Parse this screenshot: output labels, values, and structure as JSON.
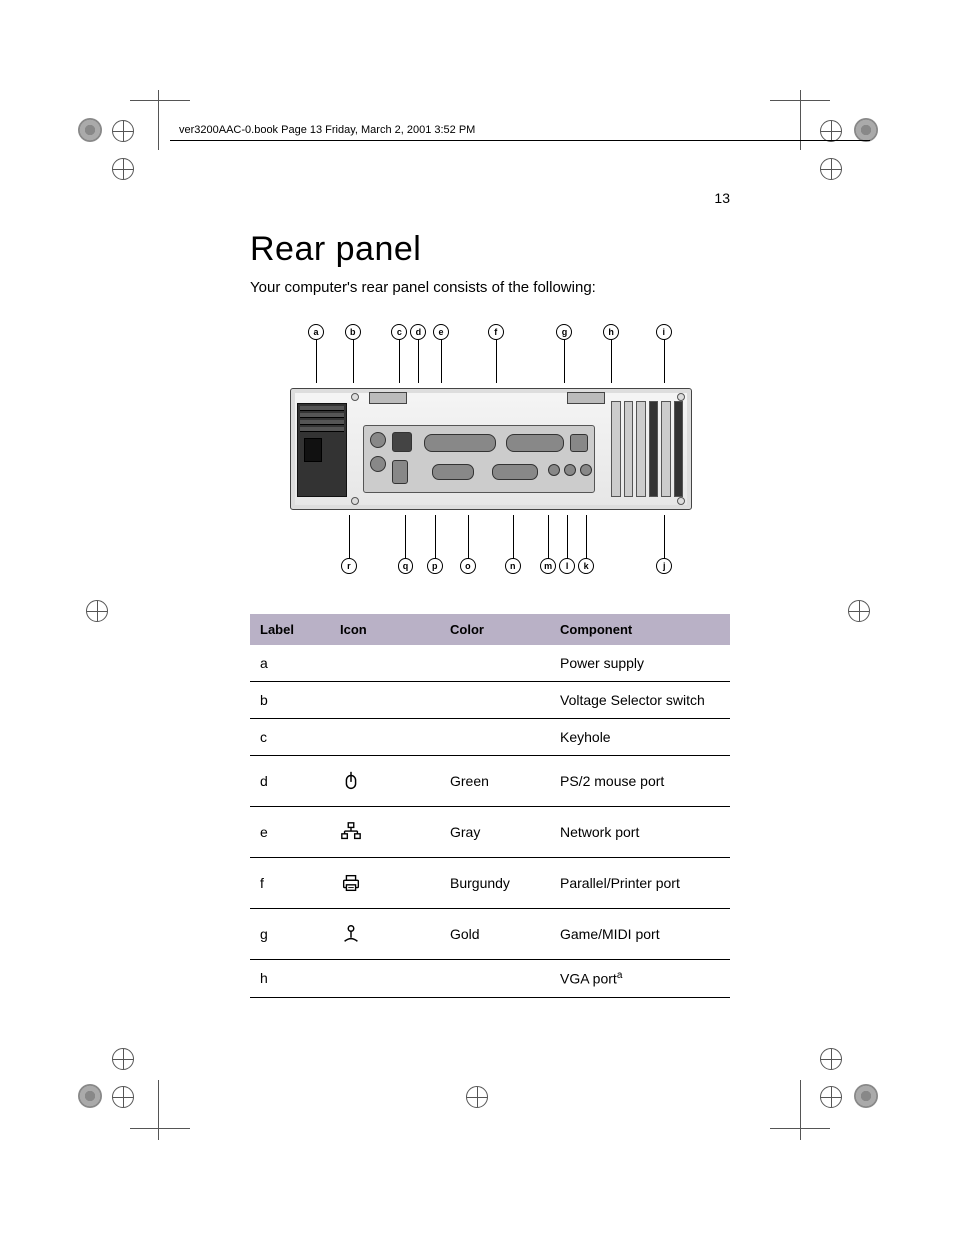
{
  "meta": {
    "book_header": "ver3200AAC-0.book  Page 13  Friday, March 2, 2001  3:52 PM",
    "page_number": "13"
  },
  "title": "Rear panel",
  "intro": "Your computer's rear panel consists of the following:",
  "callouts_top": [
    "a",
    "b",
    "c",
    "d",
    "e",
    "f",
    "g",
    "h",
    "i"
  ],
  "callouts_bottom": [
    "r",
    "q",
    "p",
    "o",
    "n",
    "m",
    "l",
    "k",
    "j"
  ],
  "table": {
    "headers": {
      "label": "Label",
      "icon": "Icon",
      "color": "Color",
      "component": "Component"
    },
    "header_bg": "#b9b1c6",
    "header_fg": "#000000",
    "row_border": "#000000",
    "rows": [
      {
        "label": "a",
        "icon": "",
        "color": "",
        "component": "Power supply",
        "tall": false
      },
      {
        "label": "b",
        "icon": "",
        "color": "",
        "component": "Voltage Selector switch",
        "tall": false
      },
      {
        "label": "c",
        "icon": "",
        "color": "",
        "component": "Keyhole",
        "tall": false
      },
      {
        "label": "d",
        "icon": "mouse",
        "color": "Green",
        "component": "PS/2 mouse port",
        "tall": true
      },
      {
        "label": "e",
        "icon": "network",
        "color": "Gray",
        "component": "Network port",
        "tall": true
      },
      {
        "label": "f",
        "icon": "printer",
        "color": "Burgundy",
        "component": "Parallel/Printer port",
        "tall": true
      },
      {
        "label": "g",
        "icon": "joystick",
        "color": "Gold",
        "component": "Game/MIDI port",
        "tall": true
      },
      {
        "label": "h",
        "icon": "",
        "color": "",
        "component": "VGA port",
        "sup": "a",
        "tall": false
      }
    ]
  },
  "style": {
    "page_bg": "#ffffff",
    "text_color": "#000000",
    "title_fontsize": 34,
    "title_weight": 300,
    "body_fontsize": 15,
    "table_fontsize": 14,
    "header_fontsize": 13
  }
}
